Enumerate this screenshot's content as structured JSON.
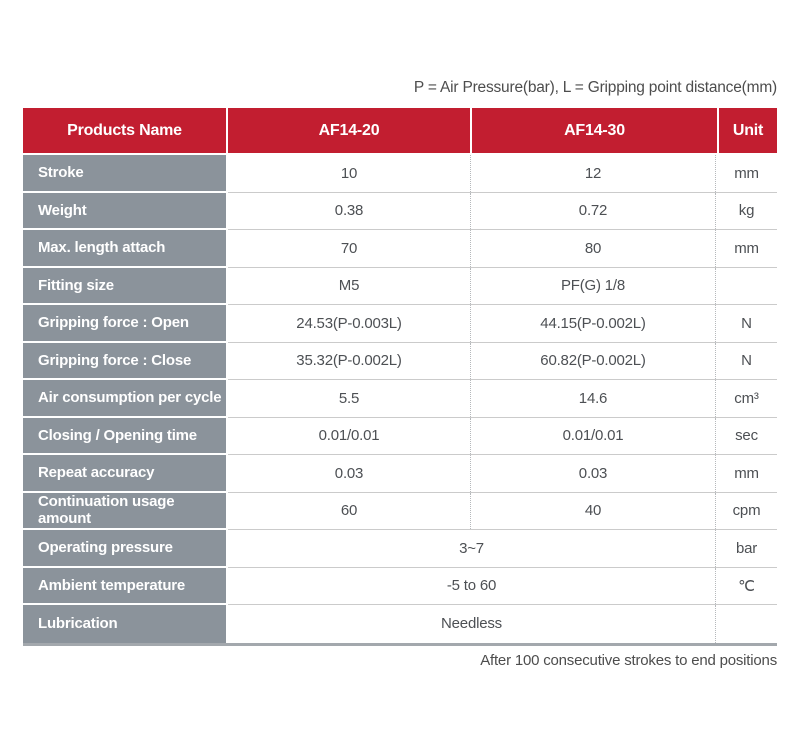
{
  "top_note": "P = Air Pressure(bar), L = Gripping point distance(mm)",
  "bottom_note": "After 100 consecutive strokes to end positions",
  "colors": {
    "header_red": "#C21E30",
    "label_gray": "#8B939B",
    "value_text": "#4D5054",
    "row_line": "#CBCBCB",
    "dotted_line": "#B5B8BB",
    "bottom_bar": "#A3A8AD"
  },
  "table": {
    "headers": [
      {
        "label": "Products Name"
      },
      {
        "label": "AF14-20"
      },
      {
        "label": "AF14-30"
      },
      {
        "label": "Unit"
      }
    ],
    "rows": [
      {
        "label": "Stroke",
        "values": [
          "10",
          "12"
        ],
        "unit": "mm",
        "span": false
      },
      {
        "label": "Weight",
        "values": [
          "0.38",
          "0.72"
        ],
        "unit": "kg",
        "span": false
      },
      {
        "label": "Max. length attach",
        "values": [
          "70",
          "80"
        ],
        "unit": "mm",
        "span": false
      },
      {
        "label": "Fitting size",
        "values": [
          "M5",
          "PF(G) 1/8"
        ],
        "unit": "",
        "span": false
      },
      {
        "label": "Gripping force : Open",
        "values": [
          "24.53(P-0.003L)",
          "44.15(P-0.002L)"
        ],
        "unit": "N",
        "span": false
      },
      {
        "label": "Gripping force : Close",
        "values": [
          "35.32(P-0.002L)",
          "60.82(P-0.002L)"
        ],
        "unit": "N",
        "span": false
      },
      {
        "label": "Air consumption per cycle",
        "values": [
          "5.5",
          "14.6"
        ],
        "unit": "cm³",
        "span": false
      },
      {
        "label": "Closing / Opening time",
        "values": [
          "0.01/0.01",
          "0.01/0.01"
        ],
        "unit": "sec",
        "span": false
      },
      {
        "label": "Repeat accuracy",
        "values": [
          "0.03",
          "0.03"
        ],
        "unit": "mm",
        "span": false
      },
      {
        "label": "Continuation usage amount",
        "values": [
          "60",
          "40"
        ],
        "unit": "cpm",
        "span": false
      },
      {
        "label": "Operating pressure",
        "values": [
          "3~7"
        ],
        "unit": "bar",
        "span": true
      },
      {
        "label": "Ambient temperature",
        "values": [
          "-5 to 60"
        ],
        "unit": "℃",
        "span": true
      },
      {
        "label": "Lubrication",
        "values": [
          "Needless"
        ],
        "unit": "",
        "span": true
      }
    ]
  }
}
